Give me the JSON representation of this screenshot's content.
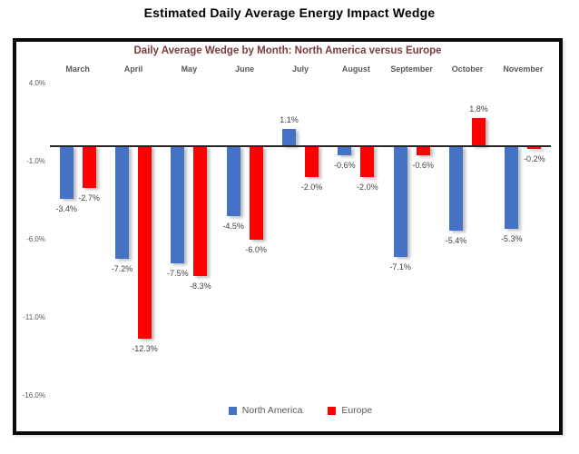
{
  "page": {
    "title": "Estimated Daily Average Energy Impact Wedge"
  },
  "chart_data": {
    "type": "bar",
    "title": "Daily Average Wedge by Month: North America versus Europe",
    "title_color": "#7a3b3b",
    "categories": [
      "March",
      "April",
      "May",
      "June",
      "July",
      "August",
      "September",
      "October",
      "November"
    ],
    "series": [
      {
        "name": "North America",
        "color": "#4472C4",
        "values": [
          -3.4,
          -7.2,
          -7.5,
          -4.5,
          1.1,
          -0.6,
          -7.1,
          -5.4,
          -5.3
        ],
        "labels": [
          "-3.4%",
          "-7.2%",
          "-7.5%",
          "-4.5%",
          "1.1%",
          "-0.6%",
          "-7.1%",
          "-5.4%",
          "-5.3%"
        ]
      },
      {
        "name": "Europe",
        "color": "#FF0000",
        "values": [
          -2.7,
          -12.3,
          -8.3,
          -6.0,
          -2.0,
          -2.0,
          -0.6,
          1.8,
          -0.2
        ],
        "labels": [
          "-2.7%",
          "-12.3%",
          "-8.3%",
          "-6.0%",
          "-2.0%",
          "-2.0%",
          "-0.6%",
          "1.8%",
          "-0.2%"
        ]
      }
    ],
    "y_ticks": [
      {
        "v": 4.0,
        "label": "4.0%"
      },
      {
        "v": -1.0,
        "label": "-1.0%"
      },
      {
        "v": -6.0,
        "label": "-6.0%"
      },
      {
        "v": -11.0,
        "label": "-11.0%"
      },
      {
        "v": -16.0,
        "label": "-16.0%"
      }
    ],
    "ylim": [
      -17.5,
      5.0
    ],
    "xlabel": "",
    "ylabel": "",
    "grid": false,
    "axis_line_color": "#262626",
    "legend_position": "bottom"
  }
}
